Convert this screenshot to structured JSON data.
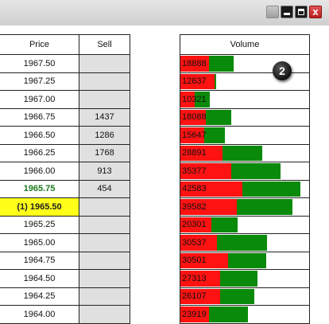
{
  "window": {
    "close_label": "x"
  },
  "ladder": {
    "headers": {
      "price": "Price",
      "sell": "Sell"
    },
    "rows": [
      {
        "price": "1967.50",
        "sell": ""
      },
      {
        "price": "1967.25",
        "sell": ""
      },
      {
        "price": "1967.00",
        "sell": ""
      },
      {
        "price": "1966.75",
        "sell": "1437"
      },
      {
        "price": "1966.50",
        "sell": "1286"
      },
      {
        "price": "1966.25",
        "sell": "1768"
      },
      {
        "price": "1966.00",
        "sell": "913"
      },
      {
        "price": "1965.75",
        "sell": "454",
        "state": "last"
      },
      {
        "price": "(1) 1965.50",
        "sell": "",
        "state": "current"
      },
      {
        "price": "1965.25",
        "sell": ""
      },
      {
        "price": "1965.00",
        "sell": ""
      },
      {
        "price": "1964.75",
        "sell": ""
      },
      {
        "price": "1964.50",
        "sell": ""
      },
      {
        "price": "1964.25",
        "sell": ""
      },
      {
        "price": "1964.00",
        "sell": ""
      }
    ]
  },
  "volume": {
    "header": "Volume",
    "max": 45000,
    "rows": [
      {
        "value": "18888",
        "total": 18888,
        "sell_part": 10000
      },
      {
        "value": "12637",
        "total": 12637,
        "sell_part": 12000
      },
      {
        "value": "10321",
        "total": 10321,
        "sell_part": 5000
      },
      {
        "value": "18088",
        "total": 18088,
        "sell_part": 9000
      },
      {
        "value": "15647",
        "total": 15647,
        "sell_part": 8500
      },
      {
        "value": "28891",
        "total": 28891,
        "sell_part": 15000
      },
      {
        "value": "35377",
        "total": 35377,
        "sell_part": 18000
      },
      {
        "value": "42583",
        "total": 42583,
        "sell_part": 22000
      },
      {
        "value": "39582",
        "total": 39582,
        "sell_part": 20000
      },
      {
        "value": "20301",
        "total": 20301,
        "sell_part": 11000
      },
      {
        "value": "30537",
        "total": 30537,
        "sell_part": 13000
      },
      {
        "value": "30501",
        "total": 30501,
        "sell_part": 17000
      },
      {
        "value": "27313",
        "total": 27313,
        "sell_part": 14000
      },
      {
        "value": "26107",
        "total": 26107,
        "sell_part": 14000
      },
      {
        "value": "23919",
        "total": 23919,
        "sell_part": 10000
      }
    ]
  },
  "badge": {
    "label": "2"
  },
  "colors": {
    "sell_bar": "#ff1212",
    "buy_bar": "#0a8a0a",
    "current_price_bg": "#ffff1a",
    "last_price_text": "#1c7a1c"
  }
}
